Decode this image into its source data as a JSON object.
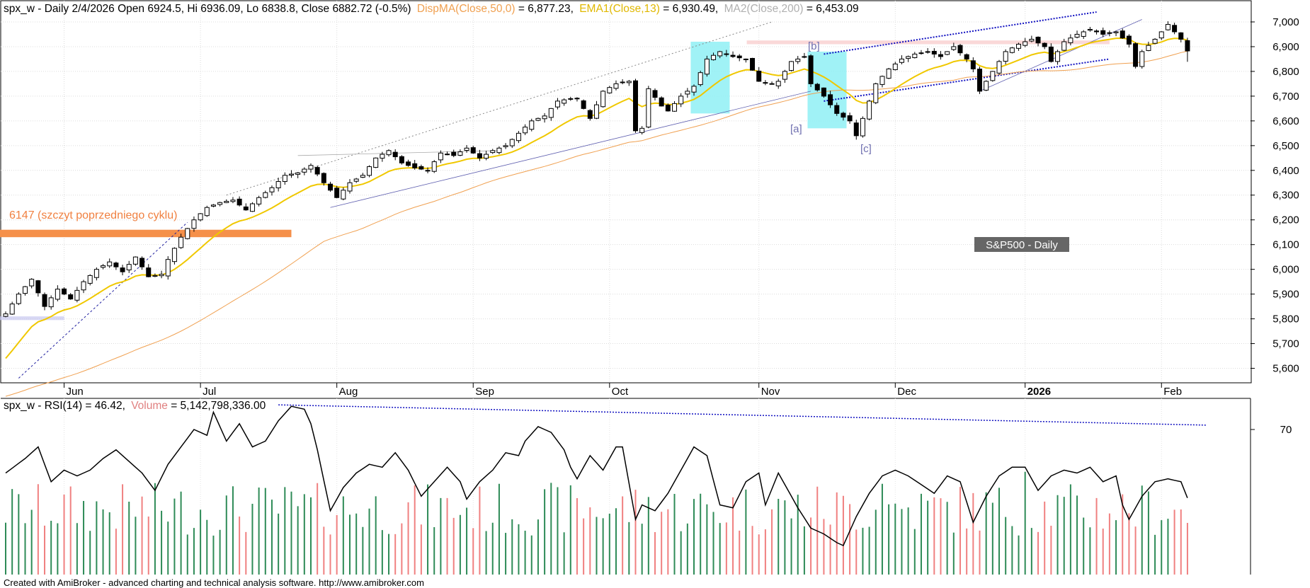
{
  "price_header": {
    "prefix": "spx_w - Daily 2/4/2026 Open 6924.5, Hi 6936.09, Lo 6838.8, Close 6882.72 (-0.5%)",
    "dispma_label": "DispMA(Close,50,0)",
    "dispma_value": " = 6,877.23,",
    "ema_label": "EMA1(Close,13)",
    "ema_value": " = 6,930.49,",
    "ma2_label": "MA2(Close,200)",
    "ma2_value": " = 6,453.09"
  },
  "rsi_header": {
    "prefix": "spx_w - RSI(14) = 46.42,",
    "volume_label": "Volume",
    "volume_value": " = 5,142,798,336.00"
  },
  "annotations": {
    "prev_cycle_label": "6147 (szczyt poprzedniego cyklu)",
    "wave_a": "[a]",
    "wave_b": "[b]",
    "wave_c": "[c]",
    "title_box": "S&P500 - Daily"
  },
  "footer": "Created with AmiBroker - advanced charting and technical analysis software. http://www.amibroker.com",
  "colors": {
    "ema": "#f0c800",
    "ma50": "#f0a050",
    "ma200": "#c0c0c0",
    "prev_cycle": "#f5904a",
    "wave_box": "#8ff0f4",
    "trend_blue": "#2020a0",
    "volume_up": "#2e8b57",
    "volume_down": "#f08080",
    "title_box_bg": "#666666"
  },
  "chart_data": [
    {
      "type": "candlestick",
      "series_name": "spx_w",
      "y_ticks": [
        5600,
        5700,
        5800,
        5900,
        6000,
        6100,
        6200,
        6300,
        6400,
        6500,
        6600,
        6700,
        6800,
        6900,
        7000
      ],
      "y_tick_labels": [
        "5,600",
        "5,700",
        "5,800",
        "5,900",
        "6,000",
        "6,100",
        "6,200",
        "6,300",
        "6,400",
        "6,500",
        "6,600",
        "6,700",
        "6,800",
        "6,900",
        "7,000"
      ],
      "ylim": [
        5550,
        7060
      ],
      "x_labels": [
        "Jun",
        "Jul",
        "Aug",
        "Sep",
        "Oct",
        "Nov",
        "Dec",
        "2026",
        "Feb"
      ],
      "x_label_sessions": [
        9,
        30,
        51,
        72,
        93,
        116,
        137,
        157,
        178
      ],
      "session_count": 182,
      "last_bar": {
        "date": "2/4/2026",
        "open": 6924.5,
        "high": 6936.09,
        "low": 6838.8,
        "close": 6882.72,
        "change_pct": -0.5
      },
      "ema13_last": 6930.49,
      "ma50_last": 6877.23,
      "ma200_last": 6453.09,
      "prev_cycle_peak": 6147,
      "close_anchors": [
        [
          0,
          5820
        ],
        [
          2,
          5900
        ],
        [
          4,
          5960
        ],
        [
          6,
          5850
        ],
        [
          8,
          5920
        ],
        [
          10,
          5880
        ],
        [
          12,
          5950
        ],
        [
          14,
          6000
        ],
        [
          16,
          6030
        ],
        [
          18,
          5990
        ],
        [
          20,
          6050
        ],
        [
          22,
          5970
        ],
        [
          24,
          5980
        ],
        [
          25,
          6040
        ],
        [
          27,
          6130
        ],
        [
          29,
          6200
        ],
        [
          31,
          6250
        ],
        [
          33,
          6270
        ],
        [
          35,
          6280
        ],
        [
          37,
          6240
        ],
        [
          39,
          6290
        ],
        [
          41,
          6330
        ],
        [
          43,
          6380
        ],
        [
          45,
          6390
        ],
        [
          47,
          6420
        ],
        [
          49,
          6350
        ],
        [
          51,
          6290
        ],
        [
          53,
          6350
        ],
        [
          55,
          6380
        ],
        [
          57,
          6450
        ],
        [
          59,
          6480
        ],
        [
          61,
          6430
        ],
        [
          63,
          6410
        ],
        [
          65,
          6400
        ],
        [
          67,
          6470
        ],
        [
          69,
          6460
        ],
        [
          71,
          6490
        ],
        [
          73,
          6450
        ],
        [
          75,
          6480
        ],
        [
          77,
          6500
        ],
        [
          79,
          6550
        ],
        [
          81,
          6600
        ],
        [
          83,
          6620
        ],
        [
          85,
          6680
        ],
        [
          87,
          6690
        ],
        [
          88,
          6690
        ],
        [
          90,
          6610
        ],
        [
          92,
          6720
        ],
        [
          94,
          6750
        ],
        [
          96,
          6760
        ],
        [
          97,
          6560
        ],
        [
          98,
          6570
        ],
        [
          99,
          6730
        ],
        [
          101,
          6660
        ],
        [
          102,
          6640
        ],
        [
          104,
          6700
        ],
        [
          106,
          6740
        ],
        [
          108,
          6850
        ],
        [
          110,
          6880
        ],
        [
          112,
          6860
        ],
        [
          114,
          6850
        ],
        [
          116,
          6760
        ],
        [
          118,
          6750
        ],
        [
          119,
          6760
        ],
        [
          121,
          6840
        ],
        [
          123,
          6860
        ],
        [
          124,
          6750
        ],
        [
          126,
          6700
        ],
        [
          128,
          6630
        ],
        [
          130,
          6600
        ],
        [
          131,
          6540
        ],
        [
          132,
          6610
        ],
        [
          134,
          6750
        ],
        [
          136,
          6810
        ],
        [
          138,
          6850
        ],
        [
          140,
          6870
        ],
        [
          142,
          6880
        ],
        [
          144,
          6860
        ],
        [
          146,
          6900
        ],
        [
          148,
          6850
        ],
        [
          149,
          6810
        ],
        [
          150,
          6720
        ],
        [
          152,
          6800
        ],
        [
          154,
          6880
        ],
        [
          156,
          6910
        ],
        [
          158,
          6930
        ],
        [
          160,
          6900
        ],
        [
          161,
          6840
        ],
        [
          163,
          6920
        ],
        [
          165,
          6950
        ],
        [
          167,
          6970
        ],
        [
          169,
          6950
        ],
        [
          171,
          6960
        ],
        [
          173,
          6910
        ],
        [
          174,
          6820
        ],
        [
          175,
          6880
        ],
        [
          177,
          6930
        ],
        [
          179,
          6990
        ],
        [
          181,
          6930
        ],
        [
          182,
          6883
        ]
      ],
      "wave_boxes": [
        {
          "label": "[a]",
          "session_from": 105.5,
          "session_to": 111.5,
          "y_top": 6920,
          "y_bottom": 6630
        },
        {
          "label": "[c]",
          "session_from": 123.5,
          "session_to": 129.5,
          "y_top": 6880,
          "y_bottom": 6570
        }
      ],
      "trend_lines": [
        {
          "style": "dashed-blue",
          "from": [
            2,
            5560
          ],
          "to": [
            28,
            6190
          ]
        },
        {
          "style": "dotted-gray",
          "from": [
            34,
            6300
          ],
          "to": [
            118,
            7000
          ]
        },
        {
          "style": "thin-blue",
          "from": [
            50,
            6250
          ],
          "to": [
            124,
            6720
          ]
        },
        {
          "style": "thin-gray",
          "from": [
            45,
            6460
          ],
          "to": [
            76,
            6480
          ]
        },
        {
          "style": "dotted-blue-channel-top",
          "from": [
            126,
            6870
          ],
          "to": [
            168,
            7040
          ]
        },
        {
          "style": "dotted-blue-channel-bottom",
          "from": [
            126,
            6680
          ],
          "to": [
            170,
            6850
          ]
        },
        {
          "style": "thin-blue-rally",
          "from": [
            150,
            6720
          ],
          "to": [
            175,
            7010
          ]
        }
      ],
      "horizontal_zones": [
        {
          "name": "prev-cycle-peak",
          "y_from": 6130,
          "y_to": 6160,
          "session_from": 0,
          "session_to": 44
        },
        {
          "name": "top-zone",
          "y_from": 6910,
          "y_to": 6925,
          "session_from": 115,
          "session_to": 170
        },
        {
          "name": "low-zone",
          "y_from": 5795,
          "y_to": 5810,
          "session_from": 0,
          "session_to": 9
        }
      ]
    },
    {
      "type": "line",
      "series_name": "RSI(14)",
      "last_value": 46.42,
      "y_ticks": [
        70
      ],
      "y_tick_labels": [
        "70"
      ],
      "ylim": [
        20,
        80
      ],
      "values_anchors": [
        [
          0,
          55
        ],
        [
          3,
          60
        ],
        [
          5,
          64
        ],
        [
          7,
          52
        ],
        [
          9,
          56
        ],
        [
          11,
          54
        ],
        [
          13,
          56
        ],
        [
          15,
          60
        ],
        [
          17,
          63
        ],
        [
          19,
          59
        ],
        [
          21,
          55
        ],
        [
          23,
          49
        ],
        [
          25,
          58
        ],
        [
          27,
          64
        ],
        [
          29,
          70
        ],
        [
          31,
          68
        ],
        [
          32,
          76
        ],
        [
          34,
          66
        ],
        [
          36,
          72
        ],
        [
          38,
          64
        ],
        [
          40,
          66
        ],
        [
          42,
          73
        ],
        [
          44,
          78
        ],
        [
          46,
          77
        ],
        [
          47,
          72
        ],
        [
          48,
          63
        ],
        [
          50,
          42
        ],
        [
          51,
          46
        ],
        [
          52,
          50
        ],
        [
          54,
          55
        ],
        [
          56,
          58
        ],
        [
          58,
          57
        ],
        [
          60,
          62
        ],
        [
          62,
          56
        ],
        [
          64,
          47
        ],
        [
          66,
          52
        ],
        [
          68,
          57
        ],
        [
          70,
          52
        ],
        [
          71,
          46
        ],
        [
          73,
          52
        ],
        [
          75,
          56
        ],
        [
          77,
          62
        ],
        [
          79,
          61
        ],
        [
          80,
          66
        ],
        [
          82,
          71
        ],
        [
          84,
          69
        ],
        [
          86,
          63
        ],
        [
          87,
          57
        ],
        [
          88,
          53
        ],
        [
          90,
          61
        ],
        [
          92,
          56
        ],
        [
          94,
          64
        ],
        [
          95,
          64
        ],
        [
          97,
          39
        ],
        [
          98,
          44
        ],
        [
          100,
          42
        ],
        [
          102,
          48
        ],
        [
          104,
          56
        ],
        [
          106,
          64
        ],
        [
          108,
          61
        ],
        [
          110,
          44
        ],
        [
          112,
          43
        ],
        [
          114,
          52
        ],
        [
          116,
          55
        ],
        [
          117,
          44
        ],
        [
          119,
          55
        ],
        [
          121,
          47
        ],
        [
          122,
          43
        ],
        [
          124,
          36
        ],
        [
          126,
          34
        ],
        [
          128,
          31
        ],
        [
          129,
          30
        ],
        [
          131,
          40
        ],
        [
          133,
          48
        ],
        [
          135,
          54
        ],
        [
          137,
          56
        ],
        [
          139,
          54
        ],
        [
          141,
          51
        ],
        [
          143,
          48
        ],
        [
          145,
          54
        ],
        [
          147,
          52
        ],
        [
          148,
          45
        ],
        [
          149,
          38
        ],
        [
          151,
          47
        ],
        [
          153,
          54
        ],
        [
          155,
          57
        ],
        [
          157,
          57
        ],
        [
          159,
          49
        ],
        [
          161,
          54
        ],
        [
          163,
          56
        ],
        [
          165,
          55
        ],
        [
          167,
          57
        ],
        [
          169,
          52
        ],
        [
          171,
          54
        ],
        [
          172,
          44
        ],
        [
          173,
          39
        ],
        [
          175,
          47
        ],
        [
          177,
          52
        ],
        [
          179,
          53
        ],
        [
          181,
          52
        ],
        [
          182,
          46
        ]
      ],
      "trend_line": {
        "style": "dotted-blue",
        "from": [
          42,
          78.5
        ],
        "to": [
          185,
          71.5
        ]
      }
    },
    {
      "type": "bar",
      "series_name": "Volume",
      "last_value": 5142798336,
      "color_rule": "up-day green, down-day salmon"
    }
  ]
}
